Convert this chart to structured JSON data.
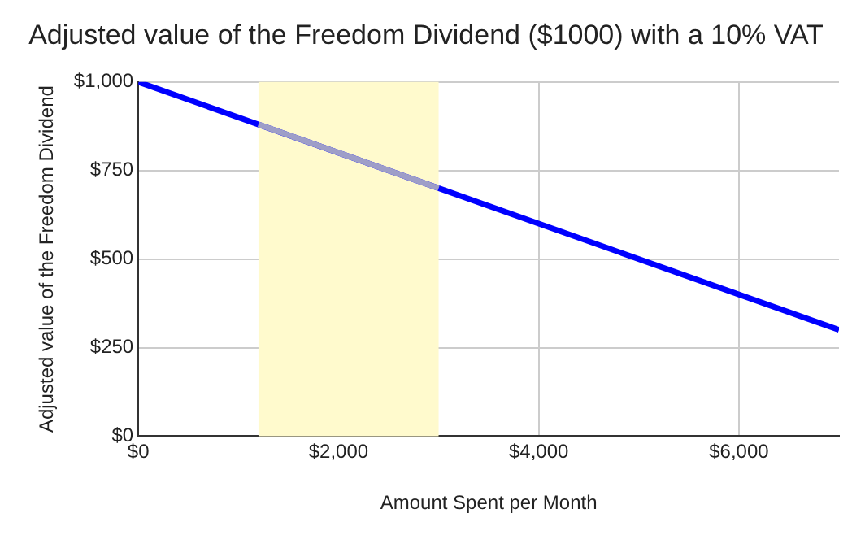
{
  "chart_data": {
    "type": "line",
    "title": "Adjusted value of the Freedom Dividend ($1000) with a 10% VAT",
    "xlabel": "Amount Spent per Month",
    "ylabel": "Adjusted value of the Freedom Dividend",
    "series": [
      {
        "color": "#0000ff",
        "x": [
          0,
          7000
        ],
        "values": [
          1000,
          300
        ]
      },
      {
        "color": "#9e9ec8",
        "x": [
          1200,
          3000
        ],
        "values": [
          880,
          700
        ]
      }
    ],
    "xlim": [
      0,
      7000
    ],
    "xticks": [
      {
        "value": 0,
        "label": "$0"
      },
      {
        "value": 2000,
        "label": "$2,000"
      },
      {
        "value": 4000,
        "label": "$4,000"
      },
      {
        "value": 6000,
        "label": "$6,000"
      }
    ],
    "ylim": [
      0,
      1000
    ],
    "yticks": [
      {
        "value": 0,
        "label": "$0"
      },
      {
        "value": 250,
        "label": "$250"
      },
      {
        "value": 500,
        "label": "$500"
      },
      {
        "value": 750,
        "label": "$750"
      },
      {
        "value": 1000,
        "label": "$1,000"
      }
    ],
    "bands": [
      {
        "axis": "x",
        "from": 1200,
        "to": 3000,
        "color": "#fffacd"
      }
    ],
    "grid": true,
    "legend": false,
    "marker": "none",
    "line_style": "solid"
  }
}
